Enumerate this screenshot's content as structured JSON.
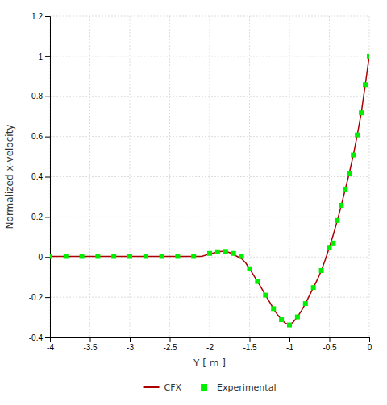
{
  "chart_data": {
    "type": "line",
    "xlabel": "Y [ m ]",
    "ylabel": "Normalized x-velocity",
    "xlim": [
      -4,
      0
    ],
    "ylim": [
      -0.4,
      1.2
    ],
    "xticks": [
      -4,
      -3.5,
      -3,
      -2.5,
      -2,
      -1.5,
      -1,
      -0.5,
      0
    ],
    "yticks": [
      -0.4,
      -0.2,
      0,
      0.2,
      0.4,
      0.6,
      0.8,
      1,
      1.2
    ],
    "grid": true,
    "legend": "bottom",
    "series": [
      {
        "name": "CFX",
        "type": "line",
        "color": "#aa0000",
        "x": [
          -4.0,
          -3.9,
          -3.8,
          -3.7,
          -3.6,
          -3.5,
          -3.4,
          -3.3,
          -3.2,
          -3.1,
          -3.0,
          -2.9,
          -2.8,
          -2.7,
          -2.6,
          -2.5,
          -2.4,
          -2.3,
          -2.2,
          -2.1,
          -2.0,
          -1.95,
          -1.9,
          -1.85,
          -1.8,
          -1.75,
          -1.7,
          -1.65,
          -1.6,
          -1.55,
          -1.5,
          -1.45,
          -1.4,
          -1.35,
          -1.3,
          -1.25,
          -1.2,
          -1.15,
          -1.1,
          -1.05,
          -1.0,
          -0.95,
          -0.9,
          -0.85,
          -0.8,
          -0.75,
          -0.7,
          -0.65,
          -0.6,
          -0.55,
          -0.5,
          -0.45,
          -0.4,
          -0.35,
          -0.3,
          -0.25,
          -0.2,
          -0.15,
          -0.1,
          -0.05,
          0.0
        ],
        "values": [
          0.003,
          0.003,
          0.003,
          0.003,
          0.003,
          0.003,
          0.003,
          0.003,
          0.003,
          0.003,
          0.003,
          0.003,
          0.003,
          0.003,
          0.003,
          0.003,
          0.003,
          0.003,
          0.003,
          0.003,
          0.015,
          0.02,
          0.025,
          0.028,
          0.028,
          0.022,
          0.012,
          0.002,
          -0.008,
          -0.028,
          -0.058,
          -0.09,
          -0.122,
          -0.155,
          -0.19,
          -0.223,
          -0.257,
          -0.287,
          -0.312,
          -0.33,
          -0.338,
          -0.323,
          -0.298,
          -0.267,
          -0.232,
          -0.192,
          -0.152,
          -0.112,
          -0.067,
          -0.012,
          0.048,
          0.112,
          0.182,
          0.258,
          0.338,
          0.418,
          0.508,
          0.608,
          0.718,
          0.858,
          1.0
        ]
      },
      {
        "name": "Experimental",
        "type": "scatter",
        "marker": "square",
        "color": "#00ee00",
        "x": [
          -4.0,
          -3.8,
          -3.6,
          -3.4,
          -3.2,
          -3.0,
          -2.8,
          -2.6,
          -2.4,
          -2.2,
          -2.0,
          -1.9,
          -1.8,
          -1.7,
          -1.6,
          -1.5,
          -1.4,
          -1.3,
          -1.2,
          -1.1,
          -1.0,
          -0.9,
          -0.8,
          -0.7,
          -0.6,
          -0.5,
          -0.45,
          -0.4,
          -0.35,
          -0.3,
          -0.25,
          -0.2,
          -0.15,
          -0.1,
          -0.05,
          0.0
        ],
        "values": [
          0.003,
          0.003,
          0.003,
          0.003,
          0.003,
          0.003,
          0.003,
          0.003,
          0.003,
          0.003,
          0.018,
          0.026,
          0.028,
          0.018,
          0.003,
          -0.058,
          -0.122,
          -0.19,
          -0.257,
          -0.312,
          -0.338,
          -0.298,
          -0.232,
          -0.152,
          -0.067,
          0.048,
          0.07,
          0.182,
          0.258,
          0.338,
          0.418,
          0.508,
          0.608,
          0.718,
          0.858,
          1.0
        ]
      }
    ]
  }
}
